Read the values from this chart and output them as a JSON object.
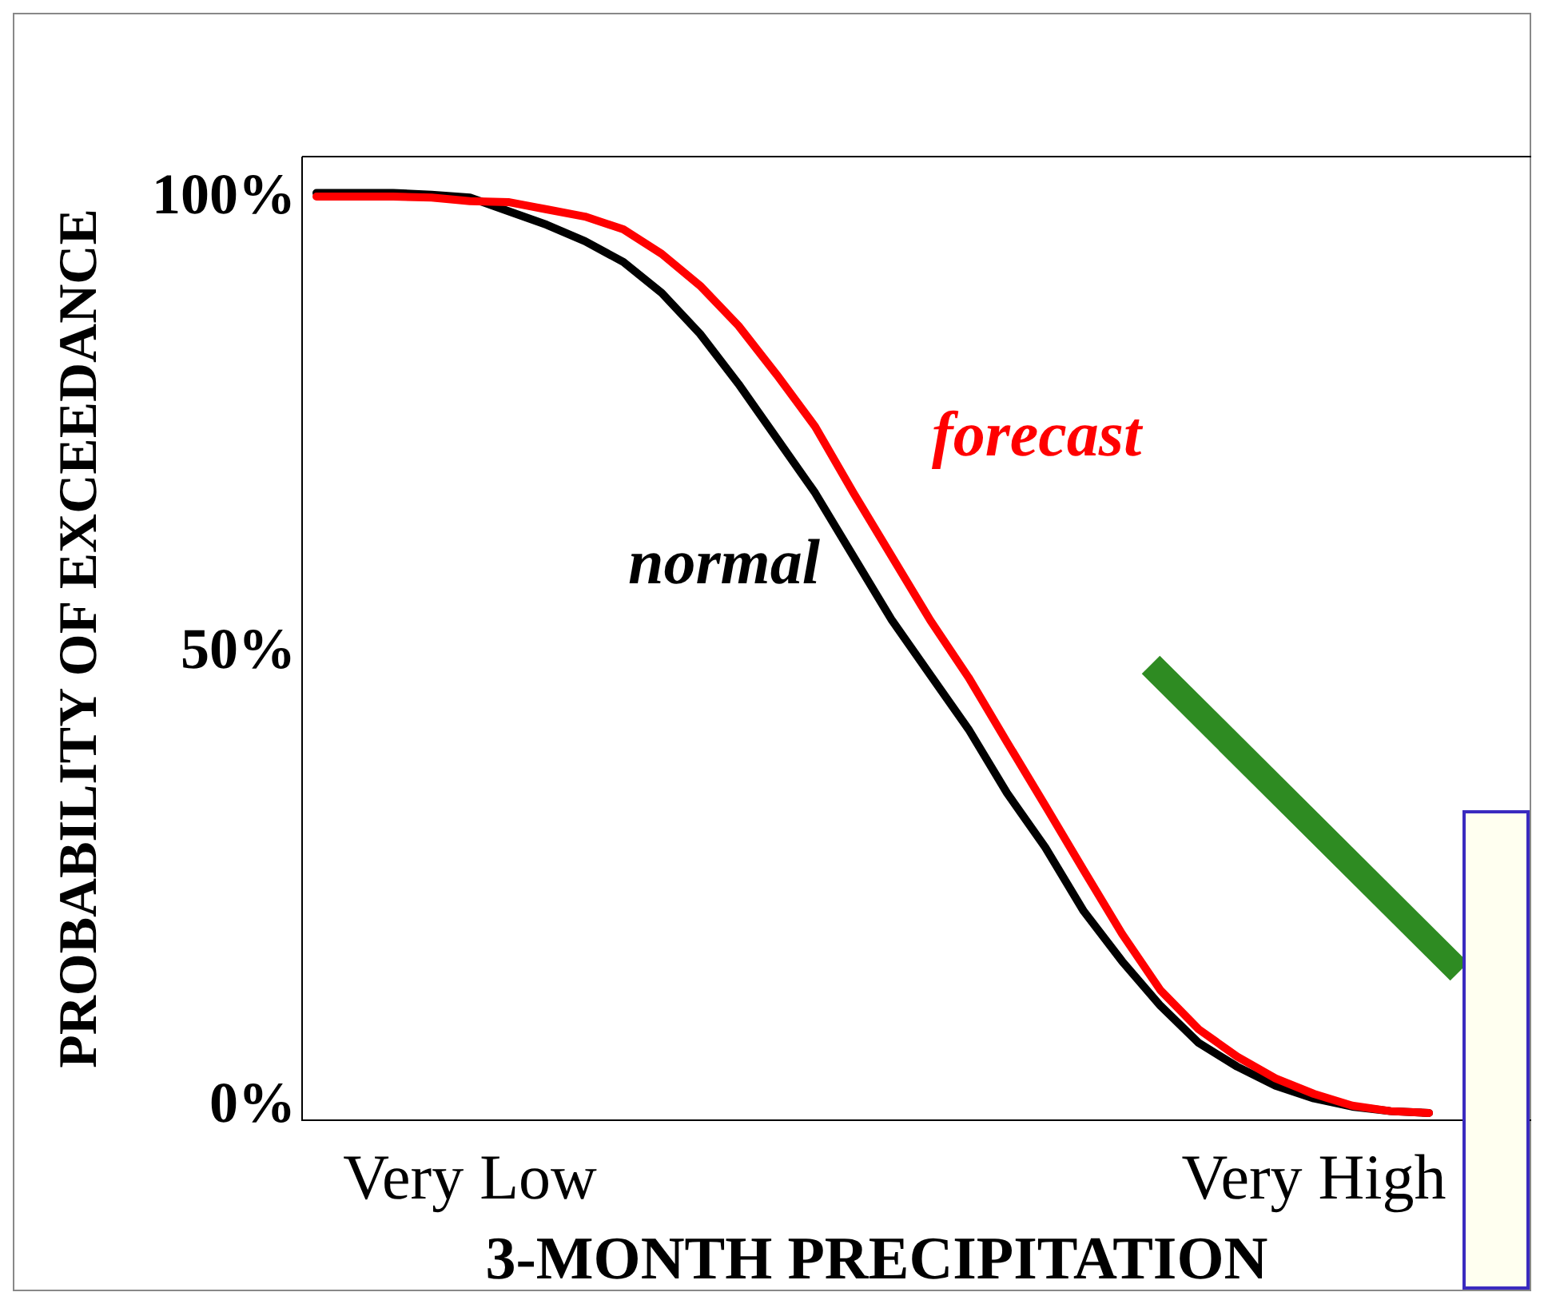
{
  "chart_data": {
    "type": "line",
    "xlabel": "3-MONTH PRECIPITATION",
    "ylabel": "PROBABILITY OF EXCEEDANCE",
    "categories": [
      null,
      null,
      null,
      null,
      "Very Low",
      null,
      null,
      null,
      null,
      null,
      null,
      null,
      null,
      null,
      null,
      null,
      null,
      null,
      null,
      null,
      null,
      null,
      null,
      null,
      null,
      null,
      "Very High",
      null,
      null,
      null
    ],
    "ylim": [
      -2,
      104
    ],
    "yticks": [
      {
        "value": 0,
        "label": "0%"
      },
      {
        "value": 50,
        "label": "50%"
      },
      {
        "value": 100,
        "label": "100%"
      }
    ],
    "grid": false,
    "marker": "none",
    "line_style": "solid",
    "series": [
      {
        "name": "normal",
        "color": "#000000",
        "values": [
          100,
          100,
          100,
          99.8,
          99.5,
          98,
          96.5,
          94.7,
          92.4,
          89,
          84.5,
          79,
          73,
          67,
          60,
          53,
          47,
          41,
          34,
          28,
          21,
          15.5,
          10.6,
          6.5,
          3.9,
          1.8,
          0.4,
          -0.5,
          -1,
          -1.2
        ]
      },
      {
        "name": "forecast",
        "color": "#ff0000",
        "values": [
          99.6,
          99.6,
          99.6,
          99.5,
          99.1,
          99,
          98.2,
          97.4,
          96,
          93.3,
          89.8,
          85.4,
          80,
          74.3,
          67,
          60,
          53,
          46.7,
          39.6,
          32.6,
          25.5,
          18.5,
          12.3,
          8,
          5,
          2.6,
          0.9,
          -0.4,
          -1,
          -1.2
        ]
      }
    ]
  }
}
